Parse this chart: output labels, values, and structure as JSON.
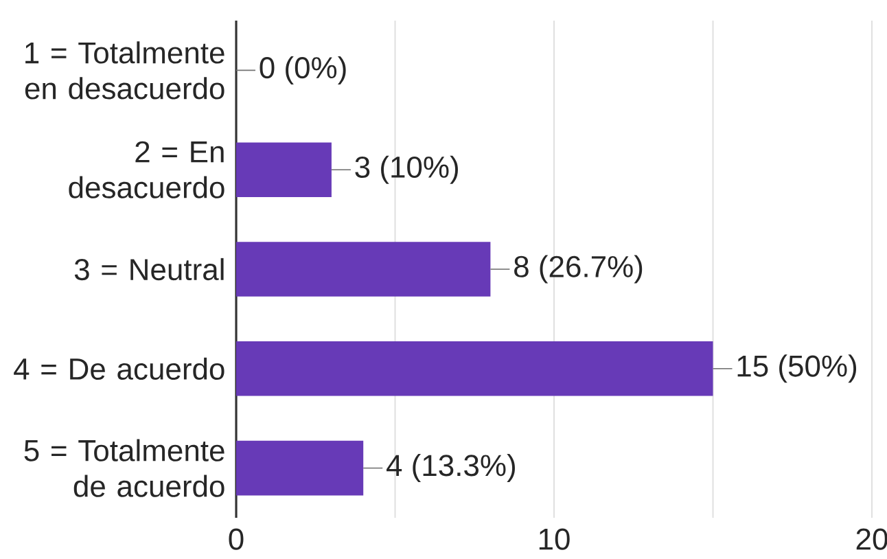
{
  "chart_data": {
    "type": "bar",
    "orientation": "horizontal",
    "categories": [
      "1 = Totalmente en desacuerdo",
      "2 = En desacuerdo",
      "3 = Neutral",
      "4 = De acuerdo",
      "5 = Totalmente de acuerdo"
    ],
    "values": [
      0,
      3,
      8,
      15,
      4
    ],
    "value_labels": [
      "0 (0%)",
      "3 (10%)",
      "8 (26.7%)",
      "15 (50%)",
      "4 (13.3%)"
    ],
    "color": "#673ab7",
    "xlim": [
      0,
      20
    ],
    "xticks": [
      0,
      {
        "value": 5,
        "label": null
      },
      10,
      {
        "value": 15,
        "label": null
      },
      20
    ],
    "grid": "x"
  }
}
